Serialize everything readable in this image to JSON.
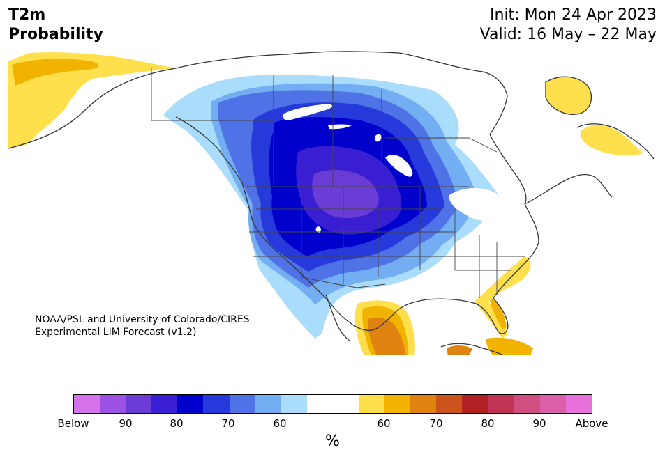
{
  "title": {
    "line1": "T2m",
    "line2": "Probability"
  },
  "init": {
    "line1": "Init: Mon 24 Apr 2023",
    "line2": "Valid: 16 May – 22 May"
  },
  "credit": {
    "line1": "NOAA/PSL and University of Colorado/CIRES",
    "line2": "Experimental LIM Forecast (v1.2)"
  },
  "colorbar": {
    "colors": [
      "#d472ea",
      "#9b52e3",
      "#6b3bd6",
      "#3a1fd2",
      "#0000cc",
      "#2639db",
      "#4f72e6",
      "#73aef2",
      "#aadcfc",
      "#ffffff",
      "#ffe04c",
      "#f2b300",
      "#e08210",
      "#cc541c",
      "#b22222",
      "#c23456",
      "#d04e80",
      "#dc60a9",
      "#e870da"
    ],
    "tick_labels": [
      "Below",
      "90",
      "80",
      "70",
      "60",
      "60",
      "70",
      "80",
      "90",
      "Above"
    ],
    "unit": "%"
  },
  "map_colors": {
    "blue60": "#aadcfc",
    "blue65": "#73aef2",
    "blue70": "#4f72e6",
    "blue75": "#2639db",
    "blue80": "#0000cc",
    "blue85": "#3a1fd2",
    "blue90": "#6b3bd6",
    "orange60": "#ffe04c",
    "orange65": "#f2b300",
    "orange70": "#e08210",
    "coast": "#333333"
  }
}
